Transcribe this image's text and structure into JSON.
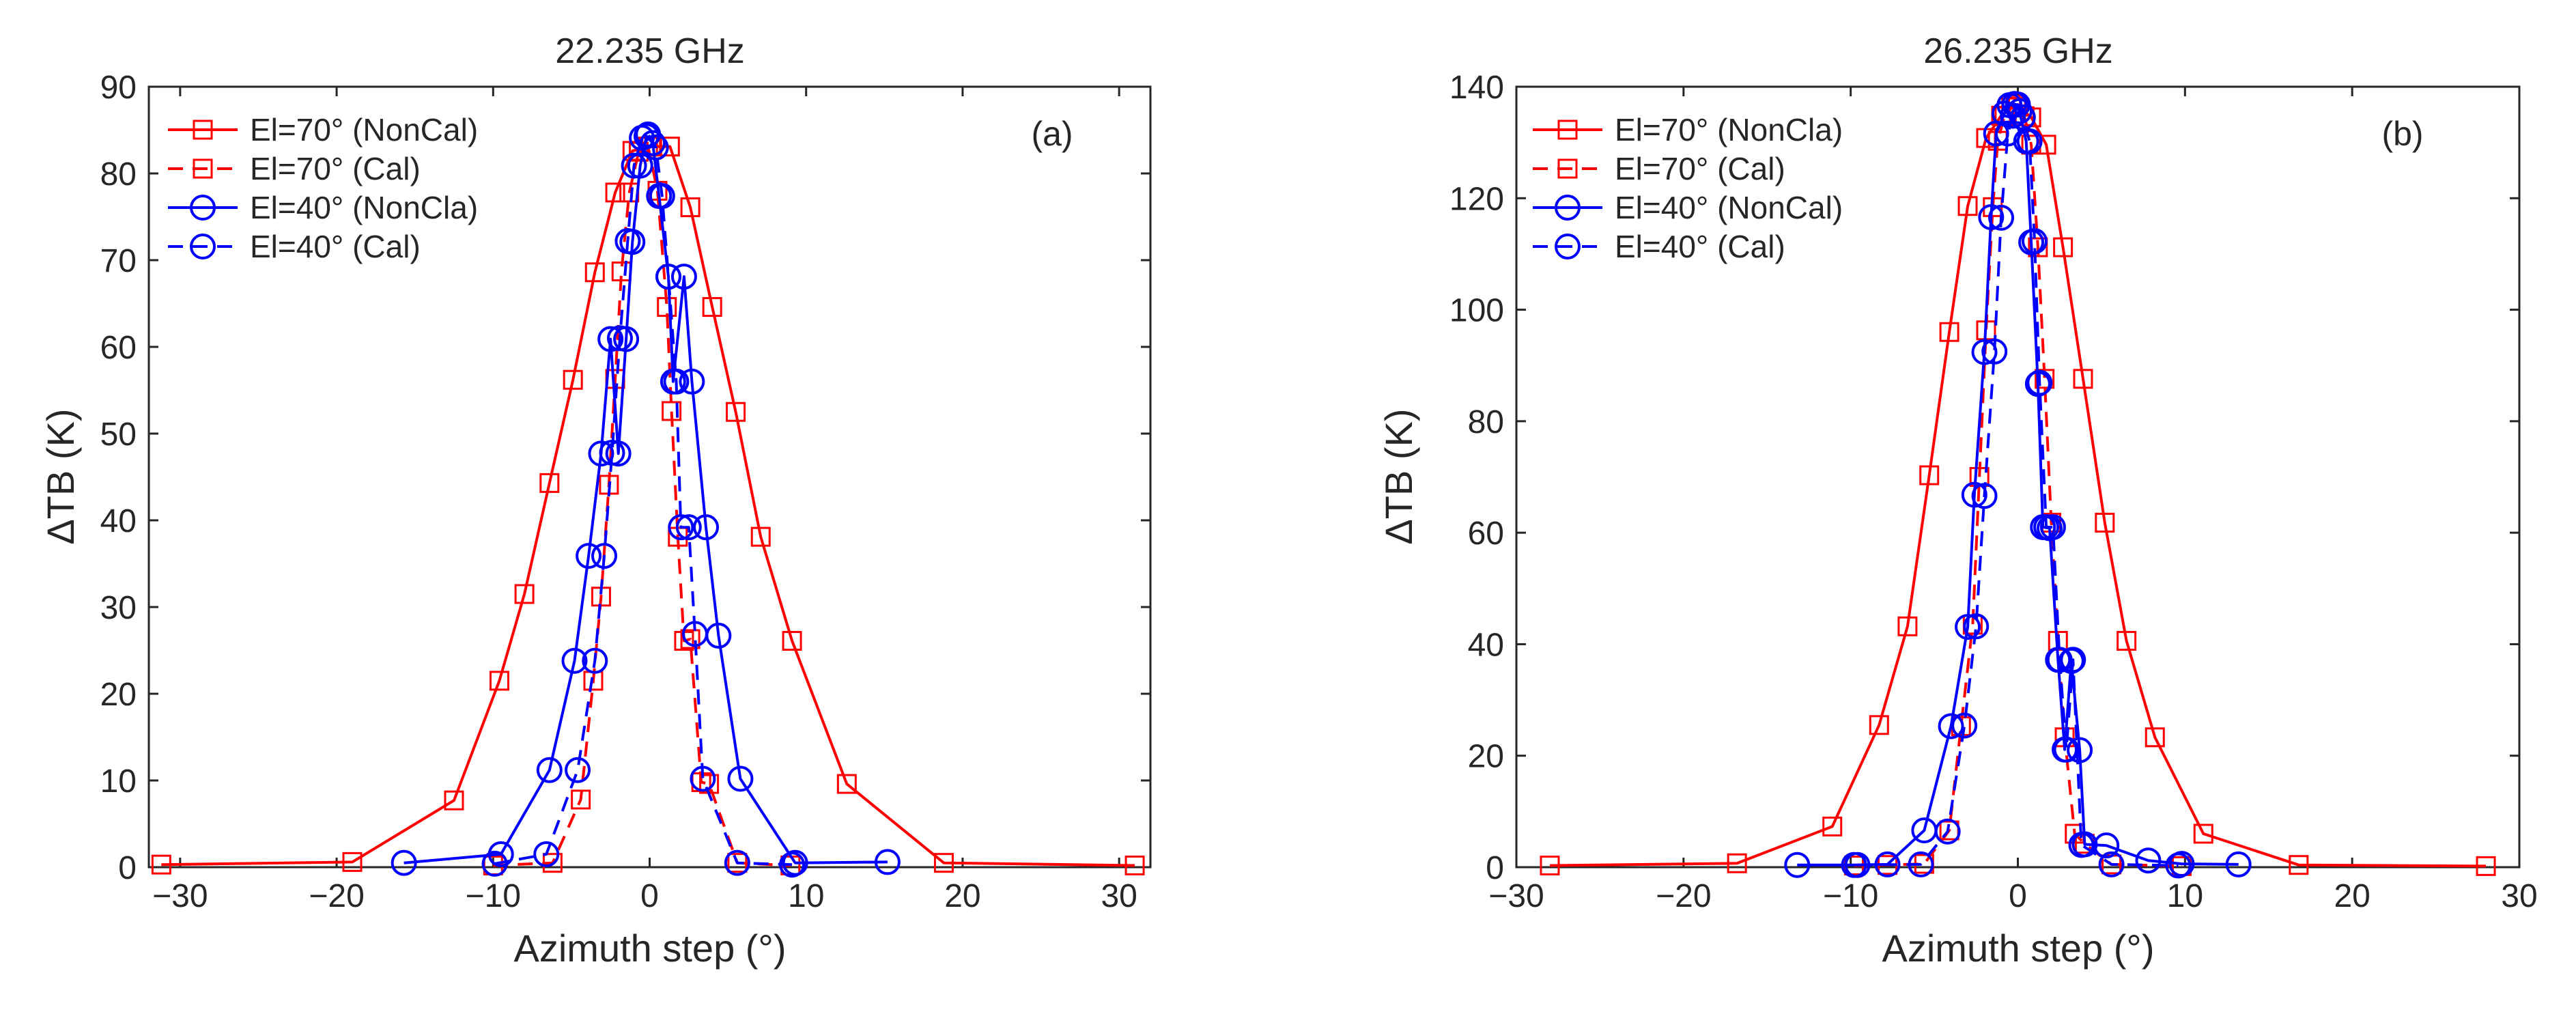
{
  "colors": {
    "red": "#ff0000",
    "blue": "#0000ff",
    "axis": "#262626"
  },
  "chart_data": [
    {
      "type": "line",
      "title": "22.235 GHz",
      "panel_label": "(a)",
      "xlabel": "Azimuth step (°)",
      "ylabel": "ΔTB (K)",
      "xlim": [
        -32,
        32
      ],
      "ylim": [
        0,
        90
      ],
      "xticks": [
        -30,
        -20,
        -10,
        0,
        10,
        20,
        30
      ],
      "yticks": [
        0,
        10,
        20,
        30,
        40,
        50,
        60,
        70,
        80,
        90
      ],
      "xtick_labels": [
        "−30",
        "−20",
        "−10",
        "0",
        "10",
        "20",
        "30"
      ],
      "ytick_labels": [
        "0",
        "10",
        "20",
        "30",
        "40",
        "50",
        "60",
        "70",
        "80",
        "90"
      ],
      "legend_location": "top-left",
      "series": [
        {
          "name": "El=70° (NonCal)",
          "color": "#ff0000",
          "line": "solid",
          "marker": "square",
          "x": [
            -31.2,
            -19,
            -12.5,
            -9.6,
            -8,
            -6.4,
            -4.9,
            -3.5,
            -2.2,
            -1.1,
            0.1,
            1.3,
            2.6,
            4,
            5.5,
            7.1,
            9.1,
            12.6,
            18.8,
            31
          ],
          "y": [
            0.3,
            0.6,
            7.7,
            21.5,
            31.5,
            44.3,
            56.2,
            68.6,
            77.8,
            82.6,
            83.1,
            83.1,
            76.1,
            64.6,
            52.5,
            38.1,
            26.1,
            9.6,
            0.5,
            0.2
          ]
        },
        {
          "name": "El=70° (Cal)",
          "color": "#ff0000",
          "line": "dashed",
          "marker": "square",
          "x": [
            -10,
            -6.2,
            -4.4,
            -3.6,
            -3.1,
            -2.6,
            -2.2,
            -1.8,
            -1.3,
            -0.7,
            -0.1,
            0.5,
            1.1,
            1.4,
            1.8,
            2.2,
            2.6,
            3.3,
            3.8,
            5.6,
            9
          ],
          "y": [
            0.2,
            0.5,
            7.8,
            21.5,
            31.2,
            44.1,
            56.3,
            68.7,
            77.8,
            82.5,
            83.1,
            78,
            64.6,
            52.6,
            38.1,
            26.1,
            26.3,
            9.8,
            9.6,
            0.5,
            0.2
          ]
        },
        {
          "name": "El=40° (NonCla)",
          "color": "#0000ff",
          "line": "solid",
          "marker": "circle",
          "x": [
            -15.7,
            -9.5,
            -6.4,
            -4.8,
            -3.9,
            -3.1,
            -2.5,
            -2,
            -1.5,
            -1.1,
            -0.6,
            -0.2,
            0.2,
            0.6,
            1.2,
            1.5,
            2.2,
            2.7,
            3.6,
            4.4,
            5.8,
            9.3,
            15.2
          ],
          "y": [
            0.5,
            1.5,
            11.2,
            23.8,
            35.9,
            47.7,
            60.9,
            47.7,
            60.9,
            72.1,
            80.9,
            84.3,
            83.5,
            77.4,
            68.1,
            56,
            68.1,
            56,
            39.2,
            26.7,
            10.2,
            0.5,
            0.6
          ]
        },
        {
          "name": "El=40° (Cal)",
          "color": "#0000ff",
          "line": "dashed",
          "marker": "circle",
          "x": [
            -9.9,
            -6.6,
            -4.6,
            -3.5,
            -2.9,
            -2.4,
            -1.9,
            -1.4,
            -1,
            -0.5,
            -0.1,
            0.4,
            0.8,
            1.2,
            1.7,
            2,
            2.5,
            2.9,
            3.4,
            5.6,
            9.1
          ],
          "y": [
            0.4,
            1.5,
            11.2,
            23.8,
            35.9,
            47.8,
            61,
            72.2,
            80.9,
            84.1,
            84.5,
            83,
            77.4,
            68.1,
            56,
            39.2,
            39.2,
            26.9,
            10.2,
            0.5,
            0.3
          ]
        }
      ]
    },
    {
      "type": "line",
      "title": "26.235 GHz",
      "panel_label": "(b)",
      "xlabel": "Azimuth step (°)",
      "ylabel": "ΔTB (K)",
      "xlim": [
        -30,
        30
      ],
      "ylim": [
        0,
        140
      ],
      "xticks": [
        -30,
        -20,
        -10,
        0,
        10,
        20,
        30
      ],
      "yticks": [
        0,
        20,
        40,
        60,
        80,
        100,
        120,
        140
      ],
      "xtick_labels": [
        "−30",
        "−20",
        "−10",
        "0",
        "10",
        "20",
        "30"
      ],
      "ytick_labels": [
        "0",
        "20",
        "40",
        "60",
        "80",
        "100",
        "120",
        "140"
      ],
      "legend_location": "top-left",
      "series": [
        {
          "name": "El=70° (NonCla)",
          "color": "#ff0000",
          "line": "solid",
          "marker": "square",
          "x": [
            -28,
            -16.8,
            -11.1,
            -8.3,
            -6.6,
            -5.3,
            -4.1,
            -3,
            -1.9,
            -1,
            -0.1,
            0.8,
            1.7,
            2.7,
            3.9,
            5.2,
            6.5,
            8.2,
            11.1,
            16.8,
            28
          ],
          "y": [
            0.3,
            0.7,
            7.3,
            25.5,
            43.2,
            70.3,
            96,
            118.6,
            130.8,
            134.8,
            136.8,
            134.5,
            129.6,
            111.2,
            87.6,
            61.8,
            40.6,
            23.3,
            6,
            0.4,
            0.2
          ]
        },
        {
          "name": "El=70° (Cal)",
          "color": "#ff0000",
          "line": "dashed",
          "marker": "square",
          "x": [
            -9.8,
            -7.8,
            -5.6,
            -4.1,
            -3.4,
            -2.7,
            -2.3,
            -1.9,
            -1.5,
            -1.2,
            -0.8,
            -0.4,
            0,
            0.4,
            0.8,
            1.2,
            1.6,
            2,
            2.4,
            2.8,
            3.4,
            4,
            5.6,
            9.8
          ],
          "y": [
            0.3,
            0.4,
            0.6,
            6.6,
            25.3,
            43.5,
            70,
            96.3,
            118.4,
            130.3,
            134.7,
            136.3,
            136.4,
            134.7,
            129.6,
            111.2,
            87.6,
            61.8,
            40.6,
            23.3,
            6,
            4.2,
            0.5,
            0.2
          ]
        },
        {
          "name": "El=40° (NonCal)",
          "color": "#0000ff",
          "line": "solid",
          "marker": "circle",
          "x": [
            -13.2,
            -9.8,
            -7.8,
            -5.6,
            -4,
            -3,
            -2.6,
            -2,
            -1.6,
            -1.3,
            -0.8,
            -0.5,
            -0.2,
            0.1,
            0.5,
            0.8,
            1.2,
            1.5,
            1.9,
            2.4,
            2.8,
            3.2,
            3.7,
            4,
            5.3,
            7.8,
            9.8,
            13.2
          ],
          "y": [
            0.4,
            0.4,
            0.5,
            6.6,
            25.3,
            43.1,
            66.8,
            92.4,
            116.6,
            131.6,
            135.2,
            136.7,
            136.9,
            135.6,
            130.2,
            112.1,
            86.7,
            61,
            60.8,
            37.2,
            21.1,
            37,
            21,
            4.1,
            3.9,
            1.2,
            0.6,
            0.5
          ]
        },
        {
          "name": "El=40° (Cal)",
          "color": "#0000ff",
          "line": "dashed",
          "marker": "circle",
          "x": [
            -9.6,
            -5.8,
            -4.2,
            -3.2,
            -2.5,
            -2,
            -1.4,
            -1,
            -0.6,
            -0.3,
            0,
            0.3,
            0.7,
            1,
            1.3,
            1.7,
            2.1,
            2.5,
            2.9,
            3.3,
            3.8,
            5.6,
            9.6
          ],
          "y": [
            0.4,
            0.5,
            6.4,
            25.4,
            43.2,
            66.6,
            92.5,
            116.5,
            131.6,
            134.8,
            136.8,
            134.5,
            130.2,
            112.3,
            86.9,
            61,
            61,
            37.2,
            21.1,
            37.2,
            4,
            0.5,
            0.3
          ]
        }
      ]
    }
  ]
}
